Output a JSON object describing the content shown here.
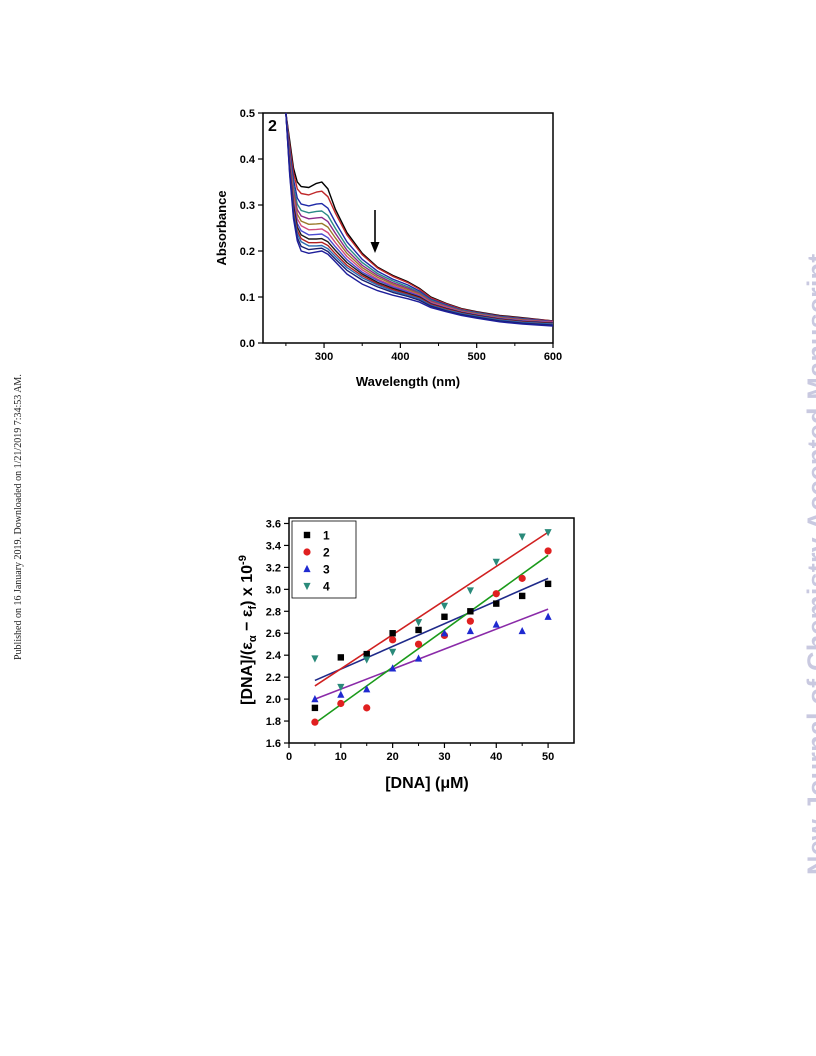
{
  "side_note": "Published on 16 January 2019. Downloaded on 1/21/2019 7:34:53 AM.",
  "watermark": "New Journal of Chemistry Accepted Manuscript",
  "chart_data": [
    {
      "type": "line",
      "panel_label": "2",
      "xlabel": "Wavelength (nm)",
      "ylabel": "Absorbance",
      "xlim": [
        220,
        600
      ],
      "ylim": [
        0.0,
        0.5
      ],
      "xticks": [
        300,
        400,
        500,
        600
      ],
      "yticks": [
        "0.0",
        "0.1",
        "0.2",
        "0.3",
        "0.4",
        "0.5"
      ],
      "annotation": "arrow pointing down near 365 nm (absorbance decreases)",
      "peak_x": 297,
      "x": [
        250,
        255,
        260,
        265,
        270,
        280,
        290,
        297,
        305,
        315,
        330,
        350,
        370,
        390,
        410,
        425,
        440,
        460,
        480,
        500,
        530,
        560,
        600
      ],
      "series": [
        {
          "color": "#000000",
          "values": [
            0.5,
            0.44,
            0.38,
            0.35,
            0.34,
            0.338,
            0.347,
            0.35,
            0.335,
            0.29,
            0.24,
            0.195,
            0.165,
            0.147,
            0.133,
            0.119,
            0.1,
            0.086,
            0.075,
            0.068,
            0.06,
            0.055,
            0.048
          ]
        },
        {
          "color": "#c0282a",
          "values": [
            0.5,
            0.43,
            0.37,
            0.335,
            0.325,
            0.322,
            0.328,
            0.33,
            0.318,
            0.282,
            0.235,
            0.192,
            0.163,
            0.145,
            0.131,
            0.117,
            0.098,
            0.085,
            0.074,
            0.067,
            0.059,
            0.054,
            0.048
          ]
        },
        {
          "color": "#1f2aa8",
          "values": [
            0.5,
            0.42,
            0.355,
            0.315,
            0.302,
            0.298,
            0.302,
            0.303,
            0.293,
            0.262,
            0.22,
            0.182,
            0.156,
            0.139,
            0.126,
            0.113,
            0.095,
            0.083,
            0.072,
            0.066,
            0.058,
            0.053,
            0.047
          ]
        },
        {
          "color": "#2a8a86",
          "values": [
            0.5,
            0.41,
            0.34,
            0.302,
            0.288,
            0.283,
            0.286,
            0.287,
            0.277,
            0.249,
            0.21,
            0.175,
            0.151,
            0.135,
            0.122,
            0.11,
            0.093,
            0.081,
            0.071,
            0.065,
            0.057,
            0.052,
            0.046
          ]
        },
        {
          "color": "#8a2a8a",
          "values": [
            0.5,
            0.405,
            0.33,
            0.29,
            0.276,
            0.27,
            0.272,
            0.273,
            0.264,
            0.238,
            0.202,
            0.169,
            0.147,
            0.131,
            0.119,
            0.108,
            0.091,
            0.08,
            0.07,
            0.064,
            0.056,
            0.051,
            0.046
          ]
        },
        {
          "color": "#9a7a2a",
          "values": [
            0.5,
            0.4,
            0.322,
            0.28,
            0.265,
            0.258,
            0.259,
            0.26,
            0.252,
            0.228,
            0.195,
            0.164,
            0.143,
            0.128,
            0.116,
            0.106,
            0.089,
            0.079,
            0.069,
            0.063,
            0.055,
            0.05,
            0.045
          ]
        },
        {
          "color": "#d04a7a",
          "values": [
            0.5,
            0.395,
            0.314,
            0.27,
            0.255,
            0.246,
            0.247,
            0.248,
            0.24,
            0.218,
            0.188,
            0.159,
            0.139,
            0.125,
            0.113,
            0.104,
            0.088,
            0.078,
            0.068,
            0.062,
            0.054,
            0.049,
            0.045
          ]
        },
        {
          "color": "#4a4ad0",
          "values": [
            0.5,
            0.39,
            0.305,
            0.26,
            0.244,
            0.235,
            0.236,
            0.237,
            0.229,
            0.209,
            0.181,
            0.154,
            0.136,
            0.122,
            0.111,
            0.102,
            0.086,
            0.076,
            0.067,
            0.061,
            0.053,
            0.048,
            0.044
          ]
        },
        {
          "color": "#1a1a1a",
          "values": [
            0.5,
            0.385,
            0.298,
            0.252,
            0.235,
            0.226,
            0.226,
            0.227,
            0.22,
            0.201,
            0.175,
            0.15,
            0.132,
            0.119,
            0.108,
            0.1,
            0.085,
            0.075,
            0.066,
            0.06,
            0.052,
            0.047,
            0.043
          ]
        },
        {
          "color": "#b02020",
          "values": [
            0.5,
            0.38,
            0.29,
            0.244,
            0.227,
            0.218,
            0.218,
            0.219,
            0.212,
            0.194,
            0.169,
            0.146,
            0.129,
            0.116,
            0.106,
            0.098,
            0.084,
            0.074,
            0.065,
            0.059,
            0.051,
            0.046,
            0.042
          ]
        },
        {
          "color": "#2a6ab0",
          "values": [
            0.5,
            0.375,
            0.283,
            0.237,
            0.22,
            0.211,
            0.211,
            0.212,
            0.205,
            0.188,
            0.164,
            0.142,
            0.126,
            0.113,
            0.104,
            0.096,
            0.082,
            0.072,
            0.064,
            0.058,
            0.05,
            0.045,
            0.041
          ]
        },
        {
          "color": "#1a2070",
          "values": [
            0.5,
            0.37,
            0.276,
            0.229,
            0.21,
            0.203,
            0.205,
            0.206,
            0.199,
            0.182,
            0.158,
            0.137,
            0.122,
            0.11,
            0.101,
            0.093,
            0.08,
            0.07,
            0.062,
            0.056,
            0.048,
            0.043,
            0.039
          ]
        },
        {
          "color": "#1e1e9a",
          "values": [
            0.5,
            0.365,
            0.27,
            0.222,
            0.2,
            0.195,
            0.198,
            0.2,
            0.193,
            0.176,
            0.15,
            0.128,
            0.114,
            0.104,
            0.096,
            0.089,
            0.077,
            0.068,
            0.06,
            0.054,
            0.046,
            0.041,
            0.037
          ]
        }
      ]
    },
    {
      "type": "scatter",
      "xlabel": "[DNA] (μM)",
      "ylabel": "[DNA]/(εα − εf) x 10-9",
      "ylabel_parts": {
        "pre": "[DNA]/(ε",
        "sub_a": "α",
        "mid": " − ε",
        "sub_f": "f",
        "post": ") x 10",
        "sup": "-9"
      },
      "xlim": [
        0,
        55
      ],
      "ylim": [
        1.6,
        3.65
      ],
      "xticks": [
        0,
        10,
        20,
        30,
        40,
        50
      ],
      "yticks": [
        "1.6",
        "1.8",
        "2.0",
        "2.2",
        "2.4",
        "2.6",
        "2.8",
        "3.0",
        "3.2",
        "3.4",
        "3.6"
      ],
      "legend_position": "top-left",
      "series": [
        {
          "name": "1",
          "marker": "square",
          "marker_color": "#000000",
          "fit_color": "#1f2a8a",
          "x": [
            5,
            10,
            15,
            20,
            25,
            30,
            35,
            40,
            45,
            50
          ],
          "y": [
            1.92,
            2.38,
            2.41,
            2.6,
            2.63,
            2.75,
            2.8,
            2.87,
            2.94,
            3.05
          ],
          "fit": [
            2.17,
            3.1
          ]
        },
        {
          "name": "2",
          "marker": "circle",
          "marker_color": "#e02020",
          "fit_color": "#d02020",
          "x": [
            5,
            10,
            15,
            20,
            25,
            30,
            35,
            40,
            45,
            50
          ],
          "y": [
            1.79,
            1.96,
            1.92,
            2.54,
            2.5,
            2.58,
            2.71,
            2.96,
            3.1,
            3.35
          ],
          "fit": [
            2.12,
            3.52
          ]
        },
        {
          "name": "3",
          "marker": "triangle-up",
          "marker_color": "#1f2ad0",
          "fit_color": "#8a2aa8",
          "x": [
            5,
            10,
            15,
            20,
            25,
            30,
            35,
            40,
            45,
            50
          ],
          "y": [
            2.0,
            2.04,
            2.09,
            2.28,
            2.37,
            2.6,
            2.62,
            2.68,
            2.62,
            2.75
          ],
          "fit": [
            2.0,
            2.82
          ]
        },
        {
          "name": "4",
          "marker": "triangle-down",
          "marker_color": "#2a8a7a",
          "fit_color": "#1a9a1a",
          "x": [
            5,
            10,
            15,
            20,
            25,
            30,
            35,
            40,
            45,
            50
          ],
          "y": [
            2.37,
            2.11,
            2.36,
            2.43,
            2.7,
            2.85,
            2.99,
            3.25,
            3.48,
            3.52
          ],
          "fit": [
            1.78,
            3.31
          ]
        }
      ]
    }
  ]
}
